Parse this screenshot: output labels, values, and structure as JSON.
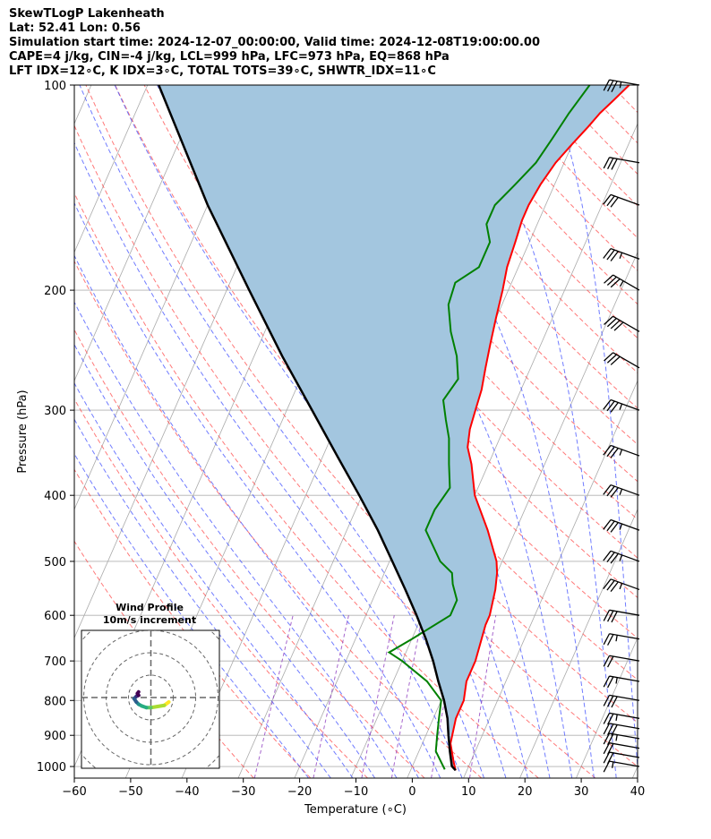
{
  "title": {
    "line1": "SkewTLogP Lakenheath",
    "line2": "Lat: 52.41   Lon: 0.56",
    "line3": "Simulation start time: 2024-12-07_00:00:00, Valid time: 2024-12-08T19:00:00.00",
    "line4": "CAPE=4 j/kg, CIN=-4 j/kg, LCL=999 hPa, LFC=973 hPa, EQ=868 hPa",
    "line5": "LFT IDX=12∘C, K IDX=3∘C, TOTAL TOTS=39∘C, SHWTR_IDX=11∘C"
  },
  "chart_data": {
    "type": "line",
    "xlabel": "Temperature (∘C)",
    "ylabel": "Pressure (hPa)",
    "xlim": [
      -60,
      40
    ],
    "ylim": [
      1040,
      100
    ],
    "y_scale": "log",
    "x_ticks": [
      "−60",
      "−50",
      "−40",
      "−30",
      "−20",
      "−10",
      "0",
      "10",
      "20",
      "30",
      "40"
    ],
    "y_ticks": [
      "100",
      "200",
      "300",
      "400",
      "500",
      "600",
      "700",
      "800",
      "900",
      "1000"
    ],
    "grid": true,
    "colors": {
      "temperature": "#ff0000",
      "dewpoint": "#008000",
      "parcel": "#000000",
      "shade": "#a3c6df",
      "dry_adiabats": "#ff4040",
      "moist_adiabats": "#4050ff",
      "isotherms": "#aaaaaa",
      "mixing_ratio": "#9040c0"
    },
    "temperature": [
      [
        1013,
        8
      ],
      [
        985,
        7
      ],
      [
        925,
        5
      ],
      [
        850,
        4
      ],
      [
        800,
        4
      ],
      [
        750,
        3
      ],
      [
        700,
        3
      ],
      [
        620,
        2
      ],
      [
        600,
        2
      ],
      [
        550,
        1
      ],
      [
        520,
        0
      ],
      [
        500,
        -1
      ],
      [
        450,
        -5
      ],
      [
        400,
        -10
      ],
      [
        360,
        -13
      ],
      [
        340,
        -15
      ],
      [
        320,
        -16
      ],
      [
        300,
        -16.5
      ],
      [
        280,
        -17
      ],
      [
        260,
        -18
      ],
      [
        240,
        -19
      ],
      [
        220,
        -20
      ],
      [
        200,
        -21
      ],
      [
        185,
        -22
      ],
      [
        170,
        -22.5
      ],
      [
        158,
        -23
      ],
      [
        150,
        -23
      ],
      [
        140,
        -22.5
      ],
      [
        130,
        -21.5
      ],
      [
        122,
        -20
      ],
      [
        115,
        -18.5
      ],
      [
        110,
        -17.5
      ],
      [
        105,
        -16
      ],
      [
        100,
        -14.5
      ]
    ],
    "dewpoint": [
      [
        1010,
        6
      ],
      [
        950,
        3
      ],
      [
        900,
        2
      ],
      [
        850,
        1
      ],
      [
        800,
        0
      ],
      [
        750,
        -4
      ],
      [
        700,
        -10
      ],
      [
        680,
        -13
      ],
      [
        650,
        -10
      ],
      [
        600,
        -5
      ],
      [
        570,
        -5
      ],
      [
        540,
        -7
      ],
      [
        520,
        -8
      ],
      [
        500,
        -11
      ],
      [
        450,
        -16
      ],
      [
        420,
        -16
      ],
      [
        390,
        -15
      ],
      [
        360,
        -17
      ],
      [
        330,
        -19
      ],
      [
        310,
        -21
      ],
      [
        290,
        -23
      ],
      [
        270,
        -22
      ],
      [
        250,
        -24
      ],
      [
        230,
        -27
      ],
      [
        210,
        -29.5
      ],
      [
        195,
        -30
      ],
      [
        185,
        -27
      ],
      [
        170,
        -27
      ],
      [
        160,
        -29
      ],
      [
        150,
        -29
      ],
      [
        140,
        -27
      ],
      [
        130,
        -25
      ],
      [
        120,
        -24
      ],
      [
        110,
        -23
      ],
      [
        100,
        -21.5
      ]
    ],
    "parcel": [
      [
        1013,
        8
      ],
      [
        999,
        7
      ],
      [
        950,
        5.5
      ],
      [
        900,
        4
      ],
      [
        850,
        2.5
      ],
      [
        800,
        0.5
      ],
      [
        750,
        -2
      ],
      [
        700,
        -4.5
      ],
      [
        650,
        -7.5
      ],
      [
        600,
        -11
      ],
      [
        550,
        -15
      ],
      [
        500,
        -19.5
      ],
      [
        450,
        -24.5
      ],
      [
        400,
        -30.5
      ],
      [
        350,
        -37.5
      ],
      [
        300,
        -45.5
      ],
      [
        250,
        -55
      ],
      [
        200,
        -66
      ],
      [
        150,
        -80
      ],
      [
        100,
        -98
      ]
    ],
    "wind_barbs": [
      {
        "p": 100,
        "dir": 280,
        "spd_kt": 35
      },
      {
        "p": 130,
        "dir": 280,
        "spd_kt": 30
      },
      {
        "p": 150,
        "dir": 290,
        "spd_kt": 30
      },
      {
        "p": 180,
        "dir": 290,
        "spd_kt": 35
      },
      {
        "p": 200,
        "dir": 300,
        "spd_kt": 35
      },
      {
        "p": 230,
        "dir": 300,
        "spd_kt": 40
      },
      {
        "p": 260,
        "dir": 300,
        "spd_kt": 30
      },
      {
        "p": 300,
        "dir": 290,
        "spd_kt": 35
      },
      {
        "p": 350,
        "dir": 290,
        "spd_kt": 35
      },
      {
        "p": 400,
        "dir": 290,
        "spd_kt": 35
      },
      {
        "p": 450,
        "dir": 290,
        "spd_kt": 35
      },
      {
        "p": 500,
        "dir": 290,
        "spd_kt": 35
      },
      {
        "p": 550,
        "dir": 290,
        "spd_kt": 35
      },
      {
        "p": 600,
        "dir": 280,
        "spd_kt": 30
      },
      {
        "p": 650,
        "dir": 280,
        "spd_kt": 25
      },
      {
        "p": 700,
        "dir": 280,
        "spd_kt": 20
      },
      {
        "p": 750,
        "dir": 280,
        "spd_kt": 25
      },
      {
        "p": 800,
        "dir": 280,
        "spd_kt": 30
      },
      {
        "p": 850,
        "dir": 280,
        "spd_kt": 25
      },
      {
        "p": 880,
        "dir": 280,
        "spd_kt": 30
      },
      {
        "p": 910,
        "dir": 280,
        "spd_kt": 25
      },
      {
        "p": 940,
        "dir": 280,
        "spd_kt": 20
      },
      {
        "p": 970,
        "dir": 280,
        "spd_kt": 20
      },
      {
        "p": 1000,
        "dir": 280,
        "spd_kt": 15
      }
    ],
    "inset": {
      "title": "Wind Profile",
      "subtitle": "10m/s increment",
      "ring_step_ms": 10,
      "hodograph": [
        [
          8,
          -2
        ],
        [
          6,
          -3.5
        ],
        [
          3,
          -4
        ],
        [
          0,
          -4.5
        ],
        [
          -2,
          -4.5
        ],
        [
          -4,
          -3.8
        ],
        [
          -5.5,
          -3
        ],
        [
          -6.5,
          -2
        ],
        [
          -7.5,
          -0.5
        ],
        [
          -6.5,
          0.5
        ],
        [
          -5.5,
          1
        ],
        [
          -6,
          1.8
        ],
        [
          -5.5,
          2.5
        ]
      ]
    }
  }
}
